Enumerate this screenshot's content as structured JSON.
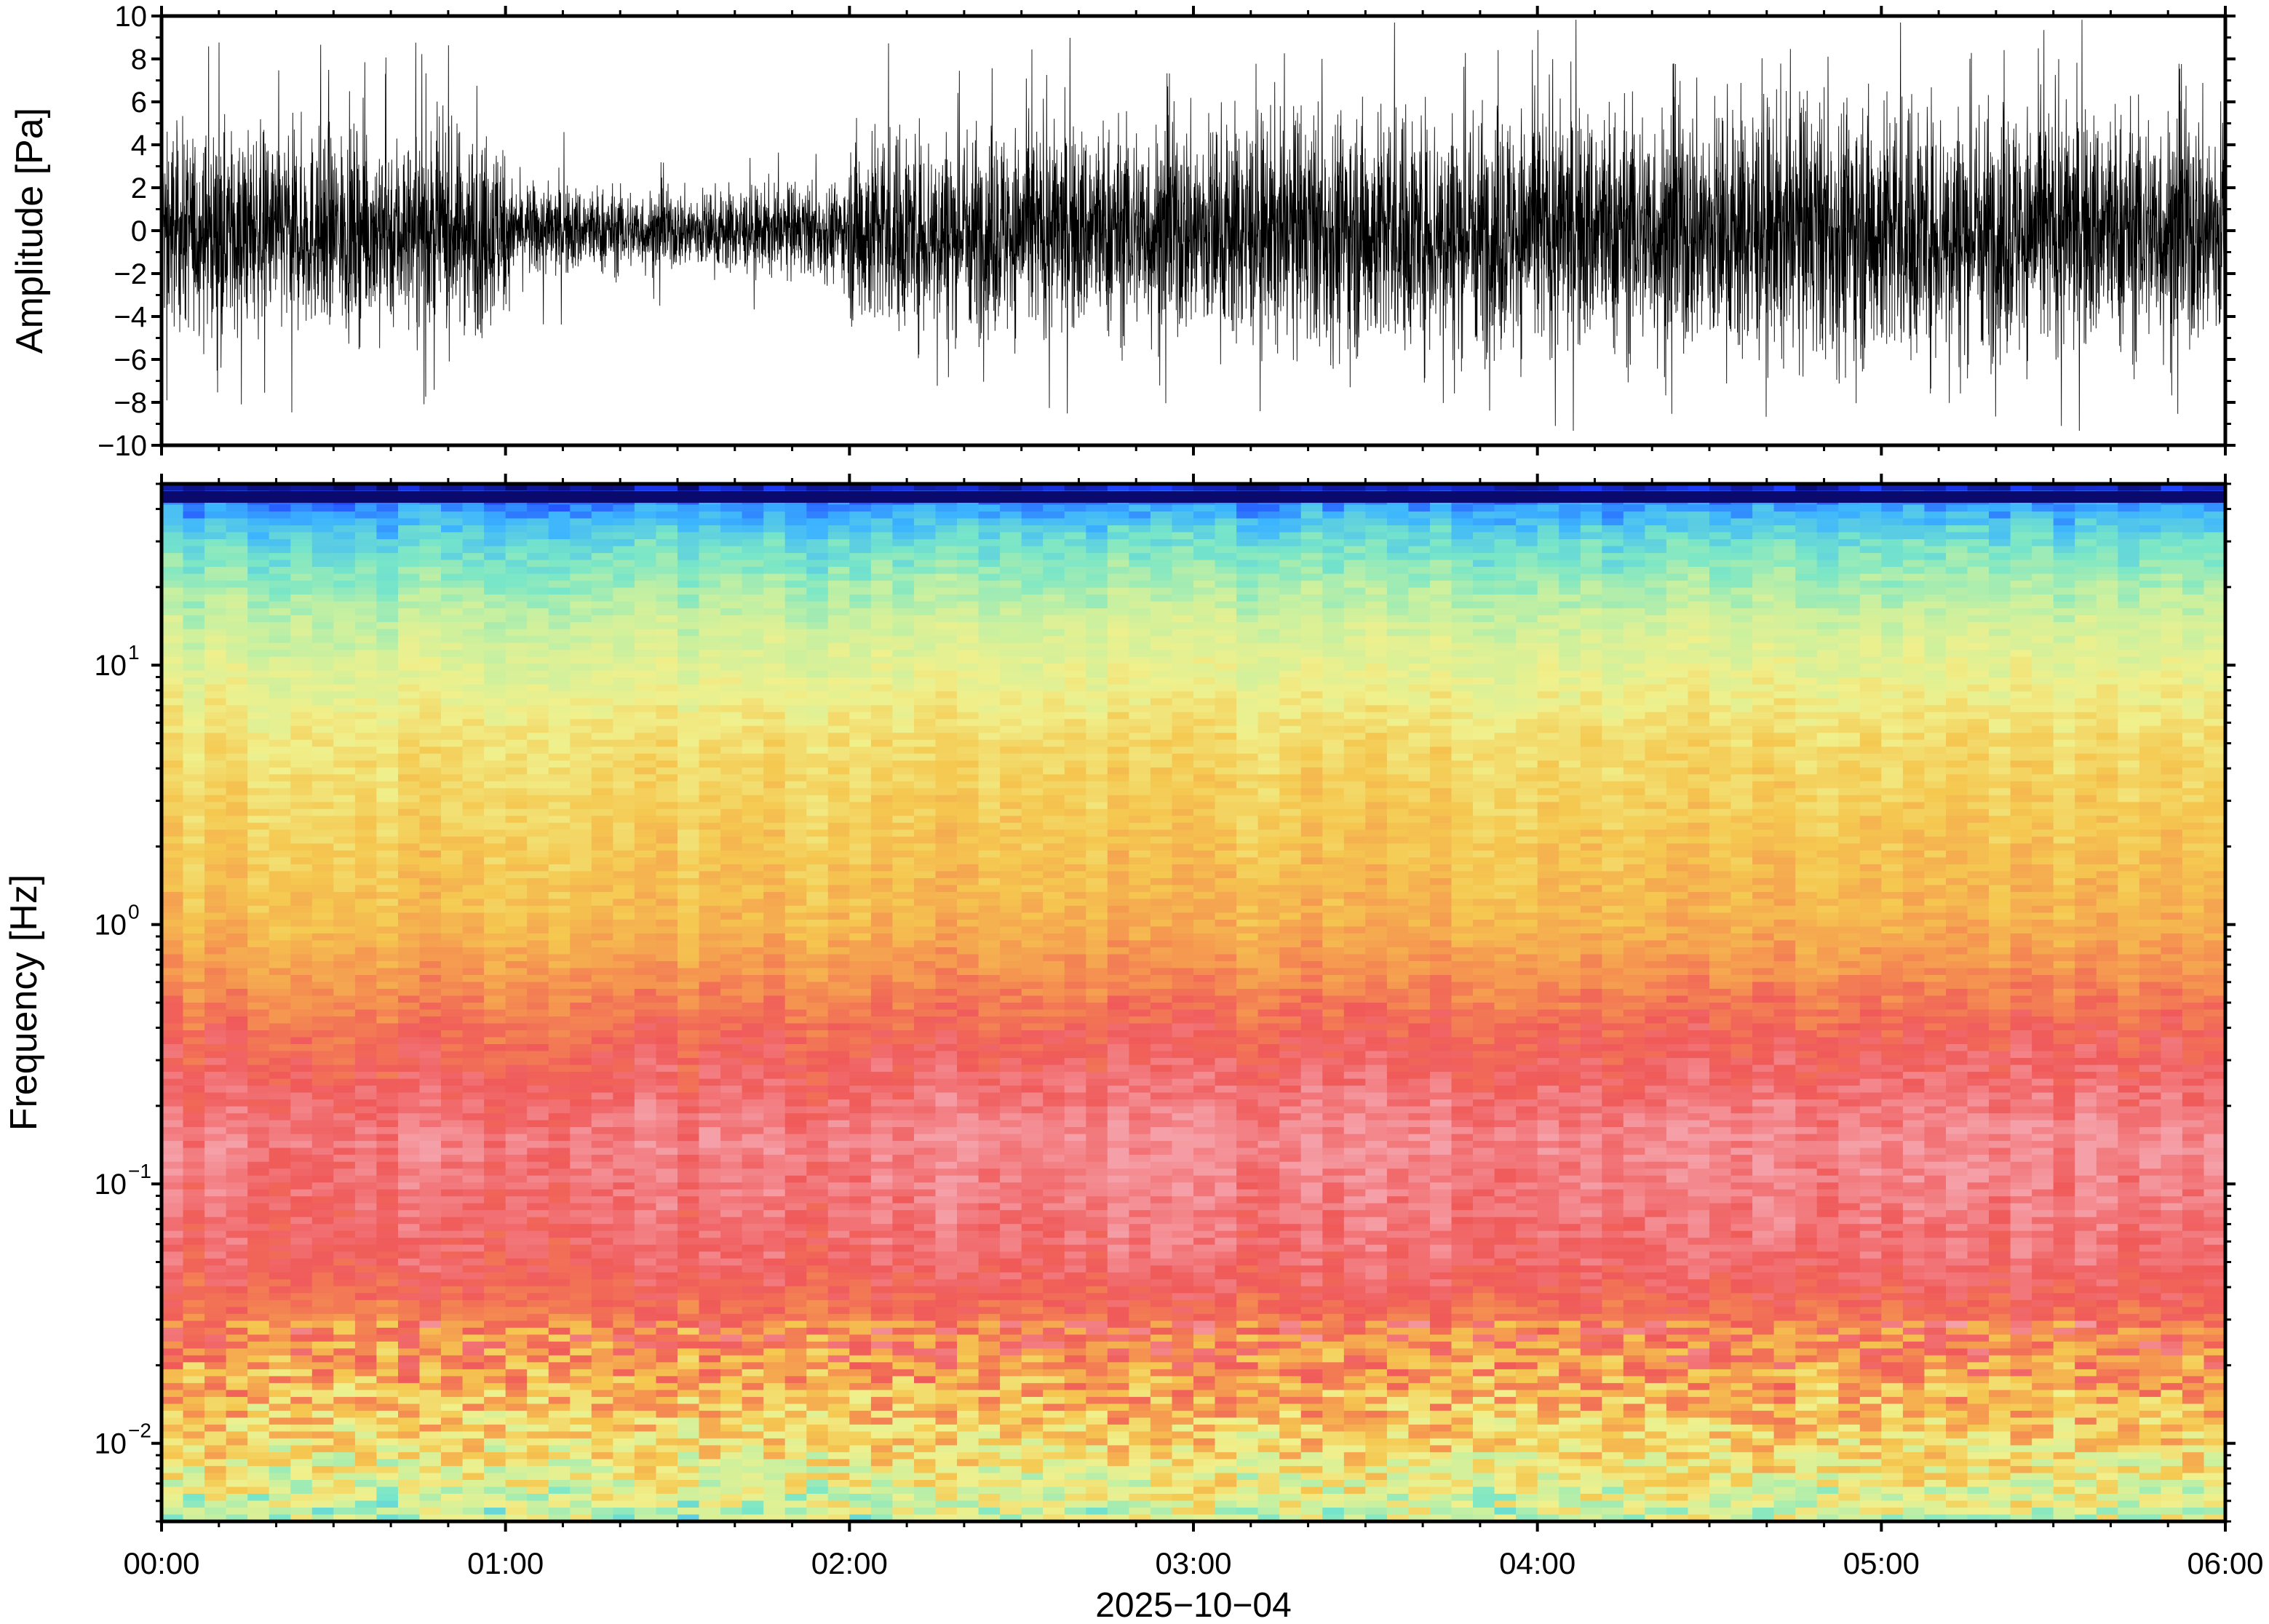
{
  "chart_data": [
    {
      "type": "line",
      "panel": "waveform",
      "ylabel": "Amplitude [Pa]",
      "ylim": [
        -10,
        10
      ],
      "yticks": [
        10,
        8,
        6,
        4,
        2,
        0,
        -2,
        -4,
        -6,
        -8,
        -10
      ],
      "ytick_labels": [
        "10",
        "8",
        "6",
        "4",
        "2",
        "0",
        "−2",
        "−4",
        "−6",
        "−8",
        "−10"
      ],
      "xlim_hours": [
        0,
        6
      ],
      "envelope": {
        "hours": [
          0.0,
          0.5,
          0.99,
          1.01,
          1.5,
          1.99,
          2.01,
          2.5,
          3.0,
          3.5,
          4.0,
          4.5,
          5.0,
          5.5,
          6.0
        ],
        "typical_abs_pa": [
          4.0,
          4.0,
          4.0,
          2.0,
          1.6,
          2.0,
          4.2,
          4.2,
          4.5,
          5.0,
          5.0,
          5.2,
          5.5,
          5.0,
          5.0
        ],
        "peak_abs_pa": [
          8.5,
          9.5,
          8.5,
          5.0,
          4.0,
          4.5,
          9.0,
          9.0,
          9.5,
          10,
          10,
          10,
          10,
          10,
          10
        ]
      },
      "line_color": "#000000"
    },
    {
      "type": "heatmap",
      "panel": "spectrogram",
      "ylabel": "Frequency [Hz]",
      "yscale": "log",
      "ylim_hz": [
        0.005,
        50
      ],
      "ytick_decades": [
        10,
        1,
        0.1,
        0.01
      ],
      "ytick_labels": [
        {
          "base": "10",
          "exp": "1"
        },
        {
          "base": "10",
          "exp": "0"
        },
        {
          "base": "10",
          "exp": "−1"
        },
        {
          "base": "10",
          "exp": "−2"
        }
      ],
      "colormap": [
        "#0a0a6e",
        "#1e3cff",
        "#3cb4ff",
        "#78e6c8",
        "#c8f0a0",
        "#f0f08c",
        "#f5c850",
        "#f59650",
        "#f05a5a",
        "#f5a0a8"
      ],
      "intensity_profile": {
        "hz": [
          50,
          45,
          30,
          15,
          5,
          1,
          0.4,
          0.15,
          0.05,
          0.025,
          0.012,
          0.005
        ],
        "level": [
          0.0,
          0.15,
          0.3,
          0.45,
          0.6,
          0.7,
          0.85,
          0.95,
          0.9,
          0.8,
          0.65,
          0.45
        ]
      },
      "xlabel": "2025−10−04",
      "xtick_labels": [
        "00:00",
        "01:00",
        "02:00",
        "03:00",
        "04:00",
        "05:00",
        "06:00"
      ],
      "xlim_hours": [
        0,
        6
      ]
    }
  ]
}
